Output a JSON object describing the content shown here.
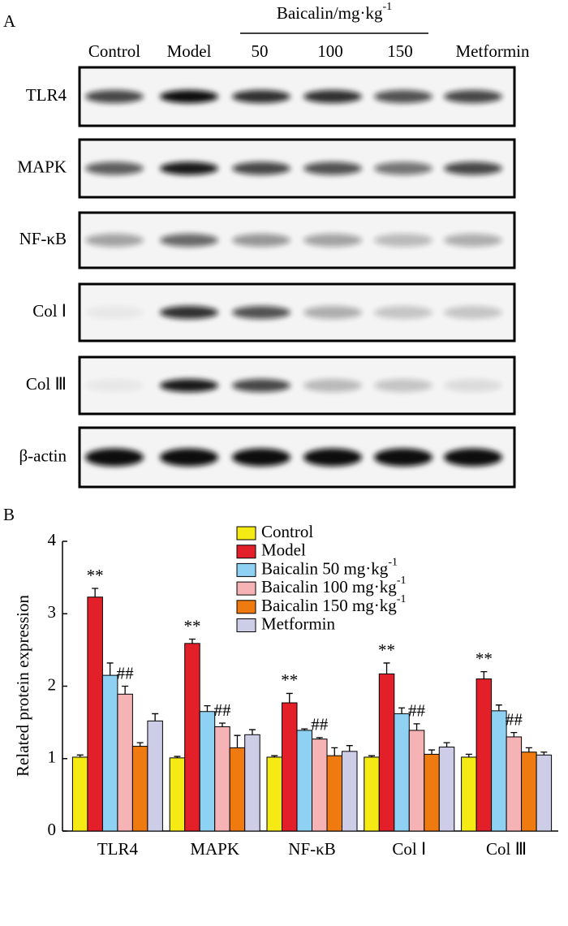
{
  "blot": {
    "panel_label": "A",
    "group_label": "Baicalin/mg·kg-1",
    "lanes": [
      "Control",
      "Model",
      "50",
      "100",
      "150",
      "Metformin"
    ],
    "proteins": [
      "TLR4",
      "MAPK",
      "NF-κB",
      "Col Ⅰ",
      "Col Ⅲ",
      "β-actin"
    ]
  },
  "chart_data": {
    "type": "bar",
    "panel_label": "B",
    "y_label": "Related protein expression",
    "categories": [
      "TLR4",
      "MAPK",
      "NF-κB",
      "Col Ⅰ",
      "Col Ⅲ"
    ],
    "ylim": [
      0,
      4
    ],
    "yticks": [
      0,
      1,
      2,
      3,
      4
    ],
    "series": [
      {
        "name": "Control",
        "color": "#f5ea14",
        "values": [
          1.02,
          1.01,
          1.02,
          1.02,
          1.02
        ],
        "errors": [
          0.03,
          0.02,
          0.02,
          0.02,
          0.04
        ]
      },
      {
        "name": "Model",
        "color": "#e3202a",
        "values": [
          3.23,
          2.59,
          1.77,
          2.17,
          2.1
        ],
        "errors": [
          0.12,
          0.06,
          0.13,
          0.15,
          0.1
        ],
        "annotations": [
          "**",
          "**",
          "**",
          "**",
          "**"
        ]
      },
      {
        "name": "Baicalin 50 mg·kg-1",
        "color": "#8fd1f2",
        "values": [
          2.15,
          1.65,
          1.39,
          1.62,
          1.66
        ],
        "errors": [
          0.17,
          0.08,
          0.02,
          0.08,
          0.08
        ]
      },
      {
        "name": "Baicalin 100 mg·kg-1",
        "color": "#f5b3b5",
        "values": [
          1.89,
          1.44,
          1.27,
          1.39,
          1.3
        ],
        "errors": [
          0.11,
          0.05,
          0.02,
          0.09,
          0.06
        ],
        "annotations": [
          "##",
          "##",
          "##",
          "##",
          "##"
        ]
      },
      {
        "name": "Baicalin 150 mg·kg-1",
        "color": "#ee7a10",
        "values": [
          1.17,
          1.15,
          1.04,
          1.06,
          1.09
        ],
        "errors": [
          0.05,
          0.17,
          0.11,
          0.06,
          0.06
        ]
      },
      {
        "name": "Metformin",
        "color": "#cdcde8",
        "values": [
          1.52,
          1.33,
          1.1,
          1.16,
          1.05
        ],
        "errors": [
          0.1,
          0.07,
          0.08,
          0.06,
          0.04
        ]
      }
    ]
  }
}
